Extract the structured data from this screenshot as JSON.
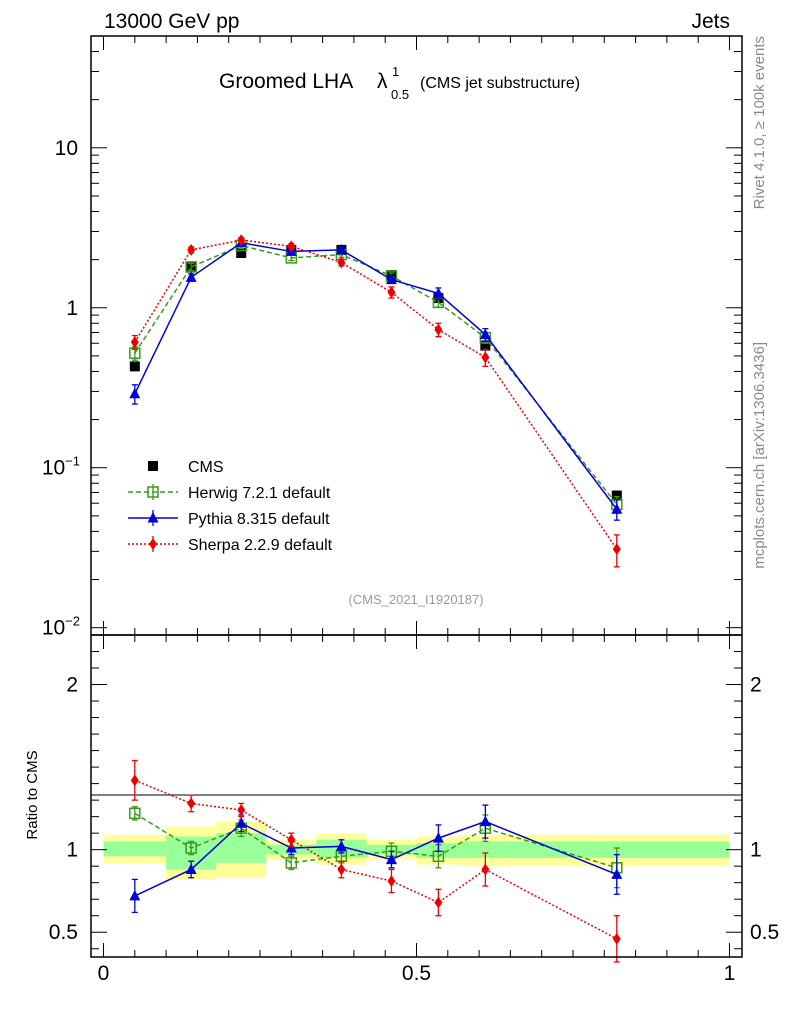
{
  "header": {
    "energy_label": "13000 GeV pp",
    "category_label": "Jets",
    "title_main": "Groomed LHA",
    "title_lambda": "λ",
    "title_sup": "1",
    "title_sub": "0.5",
    "title_suffix": "(CMS jet substructure)",
    "side_rivet": "Rivet 4.1.0, ≥ 100k events",
    "side_mcplots": "mcplots.cern.ch [arXiv:1306.3436]",
    "analysis_id": "(CMS_2021_I1920187)"
  },
  "colors": {
    "cms": "#000000",
    "herwig": "#3a9a1a",
    "pythia": "#0000dd",
    "sherpa": "#ee0000",
    "band_inner": "#99ff99",
    "band_outer": "#ffff99"
  },
  "chart_data": [
    {
      "type": "line",
      "yscale": "log",
      "ylim": [
        0.009,
        50
      ],
      "xlim": [
        -0.02,
        1.02
      ],
      "ytick_values": [
        10,
        1
      ],
      "ytick_labels": [
        "10",
        "1"
      ],
      "ytick_exp_values": [
        0.1,
        0.01
      ],
      "ytick_exp_base": [
        "10",
        "10"
      ],
      "ytick_exp_power": [
        "−1",
        "−2"
      ],
      "legend": [
        "CMS",
        "Herwig 7.2.1 default",
        "Pythia 8.315 default",
        "Sherpa 2.2.9 default"
      ],
      "legend_position": "center-left",
      "series": [
        {
          "name": "CMS",
          "style": "square-filled",
          "x": [
            0.05,
            0.14,
            0.22,
            0.3,
            0.38,
            0.46,
            0.535,
            0.61,
            0.82
          ],
          "y": [
            0.43,
            1.8,
            2.2,
            2.3,
            2.3,
            1.6,
            1.15,
            0.58,
            0.067
          ]
        },
        {
          "name": "Herwig 7.2.1 default",
          "style": "square-open-dashed",
          "x": [
            0.05,
            0.14,
            0.22,
            0.3,
            0.38,
            0.46,
            0.535,
            0.61,
            0.82
          ],
          "y": [
            0.52,
            1.8,
            2.45,
            2.05,
            2.15,
            1.58,
            1.08,
            0.65,
            0.059
          ],
          "err": [
            0.05,
            0.09,
            0.1,
            0.08,
            0.08,
            0.07,
            0.07,
            0.05,
            0.007
          ]
        },
        {
          "name": "Pythia 8.315 default",
          "style": "triangle-solid",
          "x": [
            0.05,
            0.14,
            0.22,
            0.3,
            0.38,
            0.46,
            0.535,
            0.61,
            0.82
          ],
          "y": [
            0.29,
            1.55,
            2.55,
            2.25,
            2.3,
            1.5,
            1.23,
            0.68,
            0.055
          ],
          "err": [
            0.04,
            0.08,
            0.12,
            0.1,
            0.1,
            0.08,
            0.1,
            0.06,
            0.008
          ]
        },
        {
          "name": "Sherpa 2.2.9 default",
          "style": "diamond-dotted",
          "x": [
            0.05,
            0.14,
            0.22,
            0.3,
            0.38,
            0.46,
            0.535,
            0.61,
            0.82
          ],
          "y": [
            0.61,
            2.3,
            2.65,
            2.42,
            1.92,
            1.25,
            0.73,
            0.49,
            0.031
          ],
          "err": [
            0.06,
            0.1,
            0.1,
            0.1,
            0.09,
            0.1,
            0.07,
            0.06,
            0.007
          ]
        }
      ]
    },
    {
      "type": "line",
      "ylabel": "Ratio to CMS",
      "ylim": [
        0.35,
        2.3
      ],
      "xlim": [
        -0.02,
        1.02
      ],
      "xtick_values": [
        0,
        0.5,
        1
      ],
      "xtick_labels": [
        "0",
        "0.5",
        "1"
      ],
      "ytick_values": [
        2,
        1,
        0.5
      ],
      "ytick_labels": [
        "2",
        "1",
        "0.5"
      ],
      "reference_line": 1,
      "bands": [
        {
          "x0": 0.0,
          "x1": 0.1,
          "inner": [
            0.96,
            1.05
          ],
          "outer": [
            0.92,
            1.09
          ]
        },
        {
          "x0": 0.1,
          "x1": 0.18,
          "inner": [
            0.88,
            1.08
          ],
          "outer": [
            0.82,
            1.14
          ]
        },
        {
          "x0": 0.18,
          "x1": 0.26,
          "inner": [
            0.92,
            1.1
          ],
          "outer": [
            0.83,
            1.17
          ]
        },
        {
          "x0": 0.26,
          "x1": 0.34,
          "inner": [
            0.97,
            1.03
          ],
          "outer": [
            0.94,
            1.06
          ]
        },
        {
          "x0": 0.34,
          "x1": 0.42,
          "inner": [
            0.95,
            1.06
          ],
          "outer": [
            0.91,
            1.1
          ]
        },
        {
          "x0": 0.42,
          "x1": 0.5,
          "inner": [
            0.97,
            1.03
          ],
          "outer": [
            0.94,
            1.06
          ]
        },
        {
          "x0": 0.5,
          "x1": 0.57,
          "inner": [
            0.95,
            1.04
          ],
          "outer": [
            0.91,
            1.08
          ]
        },
        {
          "x0": 0.57,
          "x1": 1.0,
          "inner": [
            0.95,
            1.05
          ],
          "outer": [
            0.9,
            1.09
          ]
        }
      ],
      "series": [
        {
          "name": "Herwig 7.2.1 default",
          "style": "square-open-dashed",
          "x": [
            0.05,
            0.14,
            0.22,
            0.3,
            0.38,
            0.46,
            0.535,
            0.61,
            0.82
          ],
          "y": [
            1.22,
            1.01,
            1.13,
            0.92,
            0.96,
            0.99,
            0.96,
            1.13,
            0.89
          ],
          "err": [
            0.04,
            0.04,
            0.05,
            0.04,
            0.04,
            0.05,
            0.07,
            0.08,
            0.12
          ]
        },
        {
          "name": "Pythia 8.315 default",
          "style": "triangle-solid",
          "x": [
            0.05,
            0.14,
            0.22,
            0.3,
            0.38,
            0.46,
            0.535,
            0.61,
            0.82
          ],
          "y": [
            0.72,
            0.88,
            1.16,
            1.01,
            1.02,
            0.94,
            1.07,
            1.17,
            0.85
          ],
          "err": [
            0.1,
            0.05,
            0.05,
            0.04,
            0.04,
            0.05,
            0.08,
            0.1,
            0.12
          ]
        },
        {
          "name": "Sherpa 2.2.9 default",
          "style": "diamond-dotted",
          "x": [
            0.05,
            0.14,
            0.22,
            0.3,
            0.38,
            0.46,
            0.535,
            0.61,
            0.82
          ],
          "y": [
            1.42,
            1.28,
            1.24,
            1.06,
            0.88,
            0.81,
            0.68,
            0.88,
            0.46
          ],
          "err": [
            0.12,
            0.05,
            0.04,
            0.04,
            0.05,
            0.07,
            0.08,
            0.1,
            0.14
          ]
        }
      ]
    }
  ]
}
